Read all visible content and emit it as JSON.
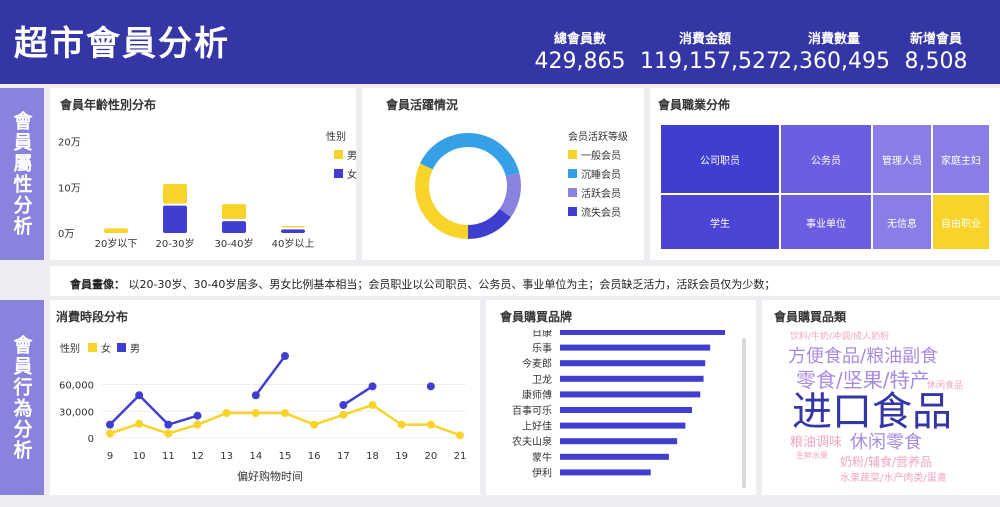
{
  "header": {
    "title": "超市會員分析",
    "kpis": [
      {
        "label": "總會員數",
        "value": "429,865"
      },
      {
        "label": "消費金額",
        "value": "119,157,527"
      },
      {
        "label": "消費數量",
        "value": "2,360,495"
      },
      {
        "label": "新增會員",
        "value": "8,508"
      }
    ]
  },
  "sidebars": {
    "attributes": "會員屬性分析",
    "behavior": "會員行為分析"
  },
  "panels": {
    "age_gender": "會員年齡性別分布",
    "activity": "會員活躍情況",
    "occupation": "會員職業分佈",
    "time": "消費時段分布",
    "brand": "會員購買品牌",
    "category": "會員購買品類"
  },
  "summary": {
    "label": "會員畫像：",
    "text": "以20-30岁、30-40岁居多、男女比例基本相当；会员职业以公司职员、公务员、事业单位为主；会员缺乏活力，活跃会员仅为少数；"
  },
  "colors": {
    "yellow": "#f8d42a",
    "blue": "#3f3ed0",
    "purple": "#8a83de",
    "header": "#3536a6"
  },
  "chart_data": [
    {
      "type": "bar",
      "stacked": true,
      "categories": [
        "20岁以下",
        "20-30岁",
        "30-40岁",
        "40岁以上"
      ],
      "legend_title": "性别",
      "series": [
        {
          "name": "男",
          "color": "#f8d42a",
          "values": [
            10000,
            43000,
            33000,
            3000
          ]
        },
        {
          "name": "女",
          "color": "#3f3ed0",
          "values": [
            0,
            60000,
            26000,
            8000
          ]
        }
      ],
      "ytick_labels": [
        "0万",
        "10万",
        "20万"
      ],
      "yticks": [
        0,
        100000,
        200000
      ],
      "ylim": [
        0,
        230000
      ]
    },
    {
      "type": "pie",
      "donut": true,
      "legend_title": "会员活跃等级",
      "labels": [
        "一般会员",
        "沉睡会员",
        "活跃会员",
        "流失会员"
      ],
      "values": [
        32,
        39,
        14,
        15
      ],
      "colors": [
        "#f8d42a",
        "#35a0e6",
        "#8a83de",
        "#3f3ed0"
      ]
    },
    {
      "type": "treemap",
      "labels": [
        "公司职员",
        "公务员",
        "管理人员",
        "家庭主妇",
        "学生",
        "事业单位",
        "无信息",
        "自由职业"
      ],
      "values": [
        120,
        72,
        42,
        42,
        115,
        90,
        42,
        40
      ],
      "colors": [
        "#3f3ed0",
        "#6c5ee0",
        "#8a7ee6",
        "#8a7ee6",
        "#4b44d4",
        "#6c5ee0",
        "#8a7ee6",
        "#f8d42a"
      ]
    },
    {
      "type": "line",
      "legend_title": "性别",
      "x": [
        9,
        10,
        11,
        12,
        13,
        14,
        15,
        16,
        17,
        18,
        19,
        20,
        21
      ],
      "xlabel": "偏好购物时间",
      "yticks": [
        0,
        30000,
        60000
      ],
      "ytick_labels": [
        "0",
        "30,000",
        "60,000"
      ],
      "ylim": [
        0,
        110000
      ],
      "series": [
        {
          "name": "女",
          "color": "#f8d42a",
          "values": [
            5000,
            16000,
            5000,
            15000,
            28000,
            28000,
            28000,
            15000,
            26000,
            37000,
            15000,
            15000,
            3000
          ]
        },
        {
          "name": "男",
          "color": "#3f3ed0",
          "values": [
            15000,
            48000,
            15000,
            25000,
            null,
            48000,
            92000,
            null,
            37000,
            58000,
            null,
            58000,
            null
          ]
        }
      ]
    },
    {
      "type": "bar",
      "orientation": "horizontal",
      "categories": [
        "日康",
        "乐事",
        "今麦郎",
        "卫龙",
        "康师傅",
        "百事可乐",
        "上好佳",
        "农夫山泉",
        "蒙牛",
        "伊利"
      ],
      "values": [
        100,
        91,
        88,
        87,
        85,
        80,
        76,
        71,
        66,
        55
      ],
      "color": "#3f3ed0"
    },
    {
      "type": "wordcloud",
      "words": [
        {
          "text": "饮料/牛奶/冲调/成人奶粉",
          "color": "#f0a6c4"
        },
        {
          "text": "方便食品/粮油副食",
          "color": "#a88be0"
        },
        {
          "text": "零食/坚果/特产",
          "color": "#a88be0"
        },
        {
          "text": "休闲食品",
          "color": "#f0a6c4"
        },
        {
          "text": "进口食品",
          "color": "#3536a6"
        },
        {
          "text": "粮油调味",
          "color": "#f0a6c4"
        },
        {
          "text": "休闲零食",
          "color": "#a88be0"
        },
        {
          "text": "生鲜水果",
          "color": "#f0a6c4"
        },
        {
          "text": "奶粉/辅食/营养品",
          "color": "#f0a6c4"
        },
        {
          "text": "水果蔬菜/水产肉类/蛋禽",
          "color": "#f0a6c4"
        }
      ]
    }
  ]
}
